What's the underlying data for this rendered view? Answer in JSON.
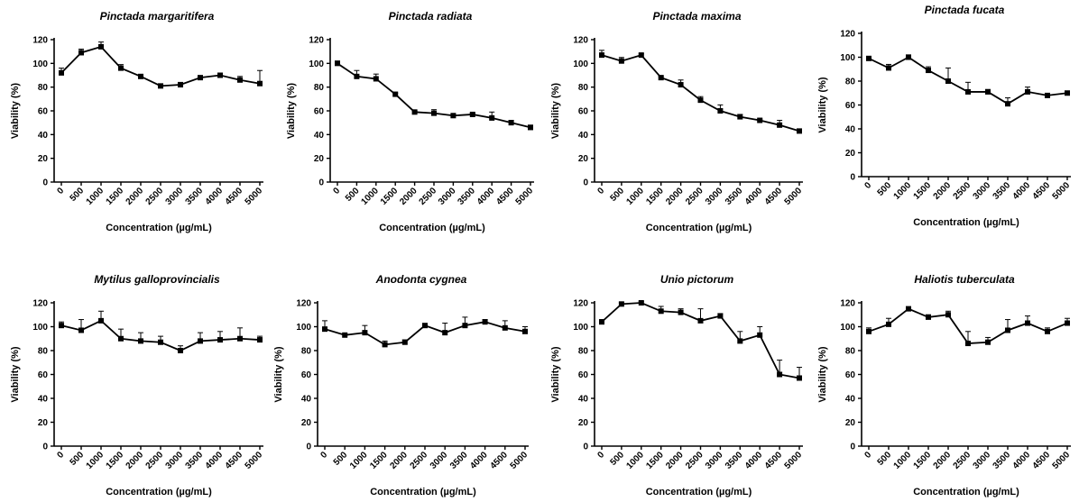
{
  "figure": {
    "xlabel": "Concentration (µg/mL)",
    "ylabel": "Viability (%)"
  },
  "chart_data": [
    {
      "type": "line",
      "title": "Pinctada margaritifera",
      "xlabel": "Concentration (µg/mL)",
      "ylabel": "Viability (%)",
      "categories": [
        "0",
        "500",
        "1000",
        "1500",
        "2000",
        "2500",
        "3000",
        "3500",
        "4000",
        "4500",
        "5000"
      ],
      "values": [
        92,
        109,
        114,
        96,
        89,
        81,
        82,
        88,
        90,
        86,
        83
      ],
      "error": [
        4,
        3,
        4,
        3,
        1,
        1,
        2,
        1,
        1,
        3,
        11
      ],
      "ylim": [
        0,
        120
      ],
      "yticks": [
        "0",
        "20",
        "40",
        "60",
        "80",
        "100",
        "120"
      ]
    },
    {
      "type": "line",
      "title": "Pinctada radiata",
      "xlabel": "Concentration (µg/mL)",
      "ylabel": "Viability (%)",
      "categories": [
        "0",
        "500",
        "1000",
        "1500",
        "2000",
        "2500",
        "3000",
        "3500",
        "4000",
        "4500",
        "5000"
      ],
      "values": [
        100,
        89,
        87,
        74,
        59,
        58,
        56,
        57,
        54,
        50,
        46
      ],
      "error": [
        2,
        5,
        4,
        1,
        1,
        3,
        1,
        1,
        5,
        2,
        2
      ],
      "ylim": [
        0,
        120
      ],
      "yticks": [
        "0",
        "20",
        "40",
        "60",
        "80",
        "100",
        "120"
      ]
    },
    {
      "type": "line",
      "title": "Pinctada maxima",
      "xlabel": "Concentration (µg/mL)",
      "ylabel": "Viability (%)",
      "categories": [
        "0",
        "500",
        "1000",
        "1500",
        "2000",
        "2500",
        "3000",
        "3500",
        "4000",
        "4500",
        "5000"
      ],
      "values": [
        107,
        102,
        107,
        88,
        82,
        69,
        60,
        55,
        52,
        48,
        43
      ],
      "error": [
        4,
        3,
        1,
        1,
        4,
        3,
        5,
        2,
        1,
        4,
        1
      ],
      "ylim": [
        0,
        120
      ],
      "yticks": [
        "0",
        "20",
        "40",
        "60",
        "80",
        "100",
        "120"
      ]
    },
    {
      "type": "line",
      "title": "Pinctada fucata",
      "xlabel": "Concentration (µg/mL)",
      "ylabel": "Viability (%)",
      "categories": [
        "0",
        "500",
        "1000",
        "1500",
        "2000",
        "2500",
        "3000",
        "3500",
        "4000",
        "4500",
        "5000"
      ],
      "values": [
        99,
        91,
        100,
        89,
        80,
        71,
        71,
        61,
        71,
        68,
        70
      ],
      "error": [
        1,
        3,
        2,
        3,
        11,
        8,
        2,
        5,
        4,
        1,
        1
      ],
      "ylim": [
        0,
        120
      ],
      "yticks": [
        "0",
        "20",
        "40",
        "60",
        "80",
        "100",
        "120"
      ]
    },
    {
      "type": "line",
      "title": "Mytilus galloprovincialis",
      "xlabel": "Concentration (µg/mL)",
      "ylabel": "Viability (%)",
      "categories": [
        "0",
        "500",
        "1000",
        "1500",
        "2000",
        "2500",
        "3000",
        "3500",
        "4000",
        "4500",
        "5000"
      ],
      "values": [
        101,
        97,
        105,
        90,
        88,
        87,
        80,
        88,
        89,
        90,
        89
      ],
      "error": [
        3,
        9,
        8,
        8,
        7,
        5,
        4,
        7,
        7,
        9,
        3
      ],
      "ylim": [
        0,
        120
      ],
      "yticks": [
        "0",
        "20",
        "40",
        "60",
        "80",
        "100",
        "120"
      ]
    },
    {
      "type": "line",
      "title": "Anodonta cygnea",
      "xlabel": "Concentration (µg/mL)",
      "ylabel": "Viability (%)",
      "categories": [
        "0",
        "500",
        "1000",
        "1500",
        "2000",
        "2500",
        "3000",
        "3500",
        "4000",
        "4500",
        "5000"
      ],
      "values": [
        98,
        93,
        95,
        85,
        87,
        101,
        95,
        101,
        104,
        99,
        96
      ],
      "error": [
        7,
        1,
        6,
        3,
        2,
        1,
        8,
        7,
        2,
        6,
        4
      ],
      "ylim": [
        0,
        120
      ],
      "yticks": [
        "0",
        "20",
        "40",
        "60",
        "80",
        "100",
        "120"
      ]
    },
    {
      "type": "line",
      "title": "Unio pictorum",
      "xlabel": "Concentration (µg/mL)",
      "ylabel": "Viability (%)",
      "categories": [
        "0",
        "500",
        "1000",
        "1500",
        "2000",
        "2500",
        "3000",
        "3500",
        "4000",
        "4500",
        "5000"
      ],
      "values": [
        104,
        119,
        120,
        113,
        112,
        105,
        109,
        88,
        93,
        60,
        57
      ],
      "error": [
        2,
        1,
        1,
        4,
        3,
        10,
        2,
        8,
        7,
        12,
        9
      ],
      "ylim": [
        0,
        120
      ],
      "yticks": [
        "0",
        "20",
        "40",
        "60",
        "80",
        "100",
        "120"
      ]
    },
    {
      "type": "line",
      "title": "Haliotis tuberculata",
      "xlabel": "Concentration (µg/mL)",
      "ylabel": "Viability (%)",
      "categories": [
        "0",
        "500",
        "1000",
        "1500",
        "2000",
        "2500",
        "3000",
        "3500",
        "4000",
        "4500",
        "5000"
      ],
      "values": [
        96,
        102,
        115,
        108,
        110,
        86,
        87,
        97,
        103,
        96,
        103
      ],
      "error": [
        3,
        5,
        1,
        2,
        3,
        10,
        4,
        9,
        6,
        3,
        4
      ],
      "ylim": [
        0,
        120
      ],
      "yticks": [
        "0",
        "20",
        "40",
        "60",
        "80",
        "100",
        "120"
      ]
    }
  ]
}
